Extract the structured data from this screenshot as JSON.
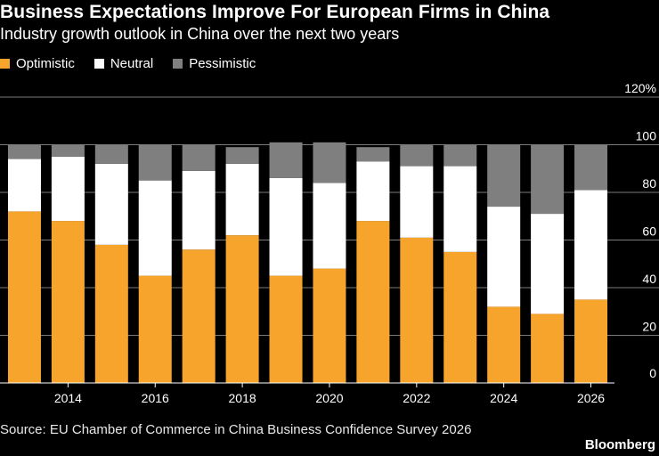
{
  "header": {
    "title": "Business Expectations Improve For European Firms in China",
    "subtitle": "Industry growth outlook in China over the next two years"
  },
  "footer": {
    "source": "Source: EU Chamber of Commerce in China Business Confidence Survey 2026",
    "brand": "Bloomberg"
  },
  "colors": {
    "optimistic": "#f7a42c",
    "neutral": "#ffffff",
    "pessimistic": "#7f7f7f",
    "background": "#000000",
    "gridline": "#7a7a7a"
  },
  "chart_data": {
    "type": "bar",
    "stacked": true,
    "categories": [
      "2013",
      "2014",
      "2015",
      "2016",
      "2017",
      "2018",
      "2019",
      "2020",
      "2021",
      "2022",
      "2023",
      "2024",
      "2025",
      "2026"
    ],
    "x_tick_labels": [
      "2014",
      "2016",
      "2018",
      "2020",
      "2022",
      "2024",
      "2026"
    ],
    "series": [
      {
        "name": "Optimistic",
        "values": [
          72,
          68,
          58,
          45,
          56,
          62,
          45,
          48,
          68,
          61,
          55,
          32,
          29,
          35
        ]
      },
      {
        "name": "Neutral",
        "values": [
          22,
          27,
          34,
          40,
          33,
          30,
          41,
          36,
          25,
          30,
          36,
          42,
          42,
          46
        ]
      },
      {
        "name": "Pessimistic",
        "values": [
          6,
          5,
          8,
          15,
          11,
          7,
          15,
          17,
          6,
          9,
          9,
          26,
          29,
          19
        ]
      }
    ],
    "y_ticks": [
      "0",
      "20",
      "40",
      "60",
      "80",
      "100",
      "120%"
    ],
    "ylim": [
      0,
      120
    ],
    "grid": true,
    "legend_position": "top-left"
  }
}
